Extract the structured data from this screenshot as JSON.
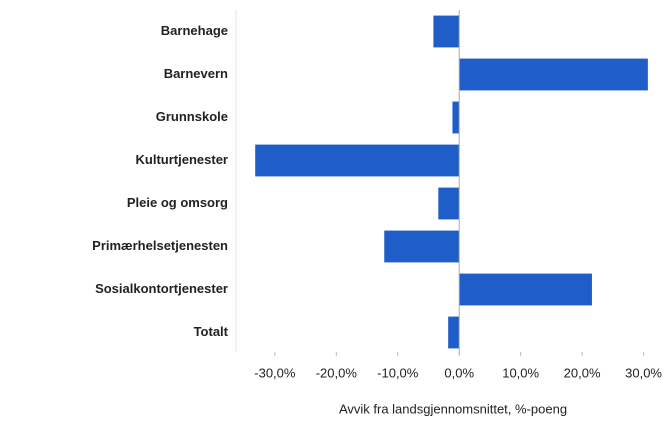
{
  "chart_data": {
    "type": "barh",
    "categories": [
      "Barnehage",
      "Barnevern",
      "Grunnskole",
      "Kulturtjenester",
      "Pleie og omsorg",
      "Primærhelsetjenesten",
      "Sosialkontortjenester",
      "Totalt"
    ],
    "values": [
      -4.2,
      30.7,
      -1.1,
      -33.2,
      -3.4,
      -12.2,
      21.6,
      -1.8
    ],
    "color": "#1f5dc9",
    "xlim": [
      -36,
      33
    ],
    "xticks": [
      {
        "value": -30,
        "label": "-30,0%"
      },
      {
        "value": -20,
        "label": "-20,0%"
      },
      {
        "value": -10,
        "label": "-10,0%"
      },
      {
        "value": 0,
        "label": "0,0%"
      },
      {
        "value": 10,
        "label": "10,0%"
      },
      {
        "value": 20,
        "label": "20,0%"
      },
      {
        "value": 30,
        "label": "30,0%"
      }
    ],
    "xlabel": "Avvik fra landsgjennomsnittet, %-poeng"
  }
}
